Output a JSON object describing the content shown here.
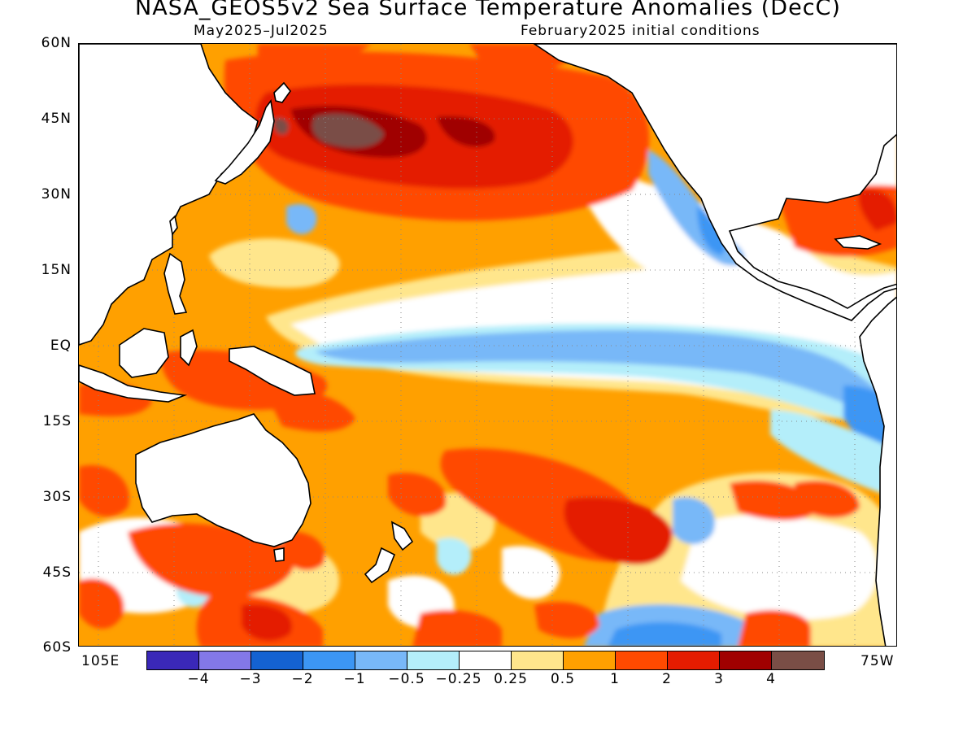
{
  "title": "NASA_GEOS5v2 Sea Surface Temperature Anomalies (DecC)",
  "subtitle_left": "May2025–Jul2025",
  "subtitle_right": "February2025 initial conditions",
  "lat_labels": [
    "60N",
    "45N",
    "30N",
    "15N",
    "EQ",
    "15S",
    "30S",
    "45S",
    "60S"
  ],
  "lon_labels": {
    "left": "105E",
    "right": "75W"
  },
  "colorbar": {
    "colors": [
      "#3a28b8",
      "#8378e8",
      "#1462d2",
      "#3c96f4",
      "#78b8f8",
      "#b4eefa",
      "#ffffff",
      "#ffe68c",
      "#ffa000",
      "#ff4a00",
      "#e41c00",
      "#a00000",
      "#7a4e46"
    ],
    "labels": [
      "−4",
      "−3",
      "−2",
      "−1",
      "−0.5",
      "−0.25",
      "0.25",
      "0.5",
      "1",
      "2",
      "3",
      "4"
    ]
  }
}
